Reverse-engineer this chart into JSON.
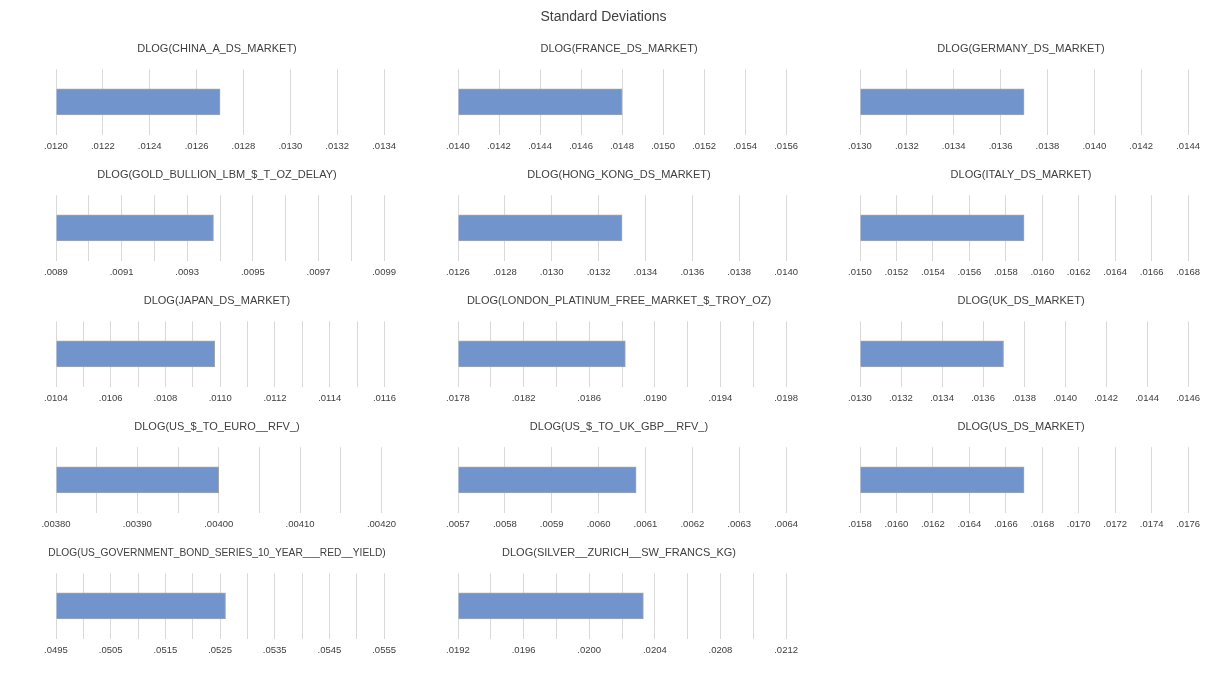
{
  "chart_data": [
    {
      "type": "other",
      "title": "Standard Deviations"
    },
    {
      "type": "bar",
      "orientation": "horizontal",
      "title": "DLOG(CHINA_A_DS_MARKET)",
      "categories": [
        null
      ],
      "values": [
        0.0127
      ],
      "color": "#7294cc",
      "xlim": [
        0.012,
        0.0134
      ],
      "xticks": [
        {
          "value": 0.012,
          "label": ".0120"
        },
        {
          "value": 0.0122,
          "label": ".0122"
        },
        {
          "value": 0.0124,
          "label": ".0124"
        },
        {
          "value": 0.0126,
          "label": ".0126"
        },
        {
          "value": 0.0128,
          "label": ".0128"
        },
        {
          "value": 0.013,
          "label": ".0130"
        },
        {
          "value": 0.0132,
          "label": ".0132"
        },
        {
          "value": 0.0134,
          "label": ".0134"
        }
      ],
      "grid": "x",
      "tick_labels": "x"
    },
    {
      "type": "bar",
      "orientation": "horizontal",
      "title": "DLOG(FRANCE_DS_MARKET)",
      "categories": [
        null
      ],
      "values": [
        0.0148
      ],
      "color": "#7294cc",
      "xlim": [
        0.014,
        0.0156
      ],
      "xticks": [
        {
          "value": 0.014,
          "label": ".0140"
        },
        {
          "value": 0.0142,
          "label": ".0142"
        },
        {
          "value": 0.0144,
          "label": ".0144"
        },
        {
          "value": 0.0146,
          "label": ".0146"
        },
        {
          "value": 0.0148,
          "label": ".0148"
        },
        {
          "value": 0.015,
          "label": ".0150"
        },
        {
          "value": 0.0152,
          "label": ".0152"
        },
        {
          "value": 0.0154,
          "label": ".0154"
        },
        {
          "value": 0.0156,
          "label": ".0156"
        }
      ],
      "grid": "x",
      "tick_labels": "x"
    },
    {
      "type": "bar",
      "orientation": "horizontal",
      "title": "DLOG(GERMANY_DS_MARKET)",
      "categories": [
        null
      ],
      "values": [
        0.0137
      ],
      "color": "#7294cc",
      "xlim": [
        0.013,
        0.0144
      ],
      "xticks": [
        {
          "value": 0.013,
          "label": ".0130"
        },
        {
          "value": 0.0132,
          "label": ".0132"
        },
        {
          "value": 0.0134,
          "label": ".0134"
        },
        {
          "value": 0.0136,
          "label": ".0136"
        },
        {
          "value": 0.0138,
          "label": ".0138"
        },
        {
          "value": 0.014,
          "label": ".0140"
        },
        {
          "value": 0.0142,
          "label": ".0142"
        },
        {
          "value": 0.0144,
          "label": ".0144"
        }
      ],
      "grid": "x",
      "tick_labels": "x"
    },
    {
      "type": "bar",
      "orientation": "horizontal",
      "title": "DLOG(GOLD_BULLION_LBM_$_T_OZ_DELAY)",
      "categories": [
        null
      ],
      "values": [
        0.00938
      ],
      "color": "#7294cc",
      "xlim": [
        0.0089,
        0.0099
      ],
      "xticks": [
        {
          "value": 0.0089,
          "label": ".0089"
        },
        {
          "value": 0.009,
          "label": null
        },
        {
          "value": 0.0091,
          "label": ".0091"
        },
        {
          "value": 0.0092,
          "label": null
        },
        {
          "value": 0.0093,
          "label": ".0093"
        },
        {
          "value": 0.0094,
          "label": null
        },
        {
          "value": 0.0095,
          "label": ".0095"
        },
        {
          "value": 0.0096,
          "label": null
        },
        {
          "value": 0.0097,
          "label": ".0097"
        },
        {
          "value": 0.0098,
          "label": null
        },
        {
          "value": 0.0099,
          "label": ".0099"
        }
      ],
      "grid": "x",
      "tick_labels": "x"
    },
    {
      "type": "bar",
      "orientation": "horizontal",
      "title": "DLOG(HONG_KONG_DS_MARKET)",
      "categories": [
        null
      ],
      "values": [
        0.0133
      ],
      "color": "#7294cc",
      "xlim": [
        0.0126,
        0.014
      ],
      "xticks": [
        {
          "value": 0.0126,
          "label": ".0126"
        },
        {
          "value": 0.0128,
          "label": ".0128"
        },
        {
          "value": 0.013,
          "label": ".0130"
        },
        {
          "value": 0.0132,
          "label": ".0132"
        },
        {
          "value": 0.0134,
          "label": ".0134"
        },
        {
          "value": 0.0136,
          "label": ".0136"
        },
        {
          "value": 0.0138,
          "label": ".0138"
        },
        {
          "value": 0.014,
          "label": ".0140"
        }
      ],
      "grid": "x",
      "tick_labels": "x"
    },
    {
      "type": "bar",
      "orientation": "horizontal",
      "title": "DLOG(ITALY_DS_MARKET)",
      "categories": [
        null
      ],
      "values": [
        0.0159
      ],
      "color": "#7294cc",
      "xlim": [
        0.015,
        0.0168
      ],
      "xticks": [
        {
          "value": 0.015,
          "label": ".0150"
        },
        {
          "value": 0.0152,
          "label": ".0152"
        },
        {
          "value": 0.0154,
          "label": ".0154"
        },
        {
          "value": 0.0156,
          "label": ".0156"
        },
        {
          "value": 0.0158,
          "label": ".0158"
        },
        {
          "value": 0.016,
          "label": ".0160"
        },
        {
          "value": 0.0162,
          "label": ".0162"
        },
        {
          "value": 0.0164,
          "label": ".0164"
        },
        {
          "value": 0.0166,
          "label": ".0166"
        },
        {
          "value": 0.0168,
          "label": ".0168"
        }
      ],
      "grid": "x",
      "tick_labels": "x"
    },
    {
      "type": "bar",
      "orientation": "horizontal",
      "title": "DLOG(JAPAN_DS_MARKET)",
      "categories": [
        null
      ],
      "values": [
        0.01098
      ],
      "color": "#7294cc",
      "xlim": [
        0.0104,
        0.0116
      ],
      "xticks": [
        {
          "value": 0.0104,
          "label": ".0104"
        },
        {
          "value": 0.0105,
          "label": null
        },
        {
          "value": 0.0106,
          "label": ".0106"
        },
        {
          "value": 0.0107,
          "label": null
        },
        {
          "value": 0.0108,
          "label": ".0108"
        },
        {
          "value": 0.0109,
          "label": null
        },
        {
          "value": 0.011,
          "label": ".0110"
        },
        {
          "value": 0.0111,
          "label": null
        },
        {
          "value": 0.0112,
          "label": ".0112"
        },
        {
          "value": 0.0113,
          "label": null
        },
        {
          "value": 0.0114,
          "label": ".0114"
        },
        {
          "value": 0.0115,
          "label": null
        },
        {
          "value": 0.0116,
          "label": ".0116"
        }
      ],
      "grid": "x",
      "tick_labels": "x"
    },
    {
      "type": "bar",
      "orientation": "horizontal",
      "title": "DLOG(LONDON_PLATINUM_FREE_MARKET_$_TROY_OZ)",
      "categories": [
        null
      ],
      "values": [
        0.01882
      ],
      "color": "#7294cc",
      "xlim": [
        0.0178,
        0.0198
      ],
      "xticks": [
        {
          "value": 0.0178,
          "label": ".0178"
        },
        {
          "value": 0.018,
          "label": null
        },
        {
          "value": 0.0182,
          "label": ".0182"
        },
        {
          "value": 0.0184,
          "label": null
        },
        {
          "value": 0.0186,
          "label": ".0186"
        },
        {
          "value": 0.0188,
          "label": null
        },
        {
          "value": 0.019,
          "label": ".0190"
        },
        {
          "value": 0.0192,
          "label": null
        },
        {
          "value": 0.0194,
          "label": ".0194"
        },
        {
          "value": 0.0196,
          "label": null
        },
        {
          "value": 0.0198,
          "label": ".0198"
        }
      ],
      "grid": "x",
      "tick_labels": "x"
    },
    {
      "type": "bar",
      "orientation": "horizontal",
      "title": "DLOG(UK_DS_MARKET)",
      "categories": [
        null
      ],
      "values": [
        0.0137
      ],
      "color": "#7294cc",
      "xlim": [
        0.013,
        0.0146
      ],
      "xticks": [
        {
          "value": 0.013,
          "label": ".0130"
        },
        {
          "value": 0.0132,
          "label": ".0132"
        },
        {
          "value": 0.0134,
          "label": ".0134"
        },
        {
          "value": 0.0136,
          "label": ".0136"
        },
        {
          "value": 0.0138,
          "label": ".0138"
        },
        {
          "value": 0.014,
          "label": ".0140"
        },
        {
          "value": 0.0142,
          "label": ".0142"
        },
        {
          "value": 0.0144,
          "label": ".0144"
        },
        {
          "value": 0.0146,
          "label": ".0146"
        }
      ],
      "grid": "x",
      "tick_labels": "x"
    },
    {
      "type": "bar",
      "orientation": "horizontal",
      "title": "DLOG(US_$_TO_EURO__RFV_)",
      "categories": [
        null
      ],
      "values": [
        0.004
      ],
      "color": "#7294cc",
      "xlim": [
        0.0038,
        0.0042
      ],
      "xticks": [
        {
          "value": 0.0038,
          "label": ".00380"
        },
        {
          "value": 0.00385,
          "label": null
        },
        {
          "value": 0.0039,
          "label": ".00390"
        },
        {
          "value": 0.00395,
          "label": null
        },
        {
          "value": 0.004,
          "label": ".00400"
        },
        {
          "value": 0.00405,
          "label": null
        },
        {
          "value": 0.0041,
          "label": ".00410"
        },
        {
          "value": 0.00415,
          "label": null
        },
        {
          "value": 0.0042,
          "label": ".00420"
        }
      ],
      "grid": "x",
      "tick_labels": "x"
    },
    {
      "type": "bar",
      "orientation": "horizontal",
      "title": "DLOG(US_$_TO_UK_GBP__RFV_)",
      "categories": [
        null
      ],
      "values": [
        0.00608
      ],
      "color": "#7294cc",
      "xlim": [
        0.0057,
        0.0064
      ],
      "xticks": [
        {
          "value": 0.0057,
          "label": ".0057"
        },
        {
          "value": 0.0058,
          "label": ".0058"
        },
        {
          "value": 0.0059,
          "label": ".0059"
        },
        {
          "value": 0.006,
          "label": ".0060"
        },
        {
          "value": 0.0061,
          "label": ".0061"
        },
        {
          "value": 0.0062,
          "label": ".0062"
        },
        {
          "value": 0.0063,
          "label": ".0063"
        },
        {
          "value": 0.0064,
          "label": ".0064"
        }
      ],
      "grid": "x",
      "tick_labels": "x"
    },
    {
      "type": "bar",
      "orientation": "horizontal",
      "title": "DLOG(US_DS_MARKET)",
      "categories": [
        null
      ],
      "values": [
        0.0167
      ],
      "color": "#7294cc",
      "xlim": [
        0.0158,
        0.0176
      ],
      "xticks": [
        {
          "value": 0.0158,
          "label": ".0158"
        },
        {
          "value": 0.016,
          "label": ".0160"
        },
        {
          "value": 0.0162,
          "label": ".0162"
        },
        {
          "value": 0.0164,
          "label": ".0164"
        },
        {
          "value": 0.0166,
          "label": ".0166"
        },
        {
          "value": 0.0168,
          "label": ".0168"
        },
        {
          "value": 0.017,
          "label": ".0170"
        },
        {
          "value": 0.0172,
          "label": ".0172"
        },
        {
          "value": 0.0174,
          "label": ".0174"
        },
        {
          "value": 0.0176,
          "label": ".0176"
        }
      ],
      "grid": "x",
      "tick_labels": "x"
    },
    {
      "type": "bar",
      "orientation": "horizontal",
      "title": "DLOG(US_GOVERNMENT_BOND_SERIES_10_YEAR___RED__YIELD)",
      "categories": [
        null
      ],
      "values": [
        0.0526
      ],
      "color": "#7294cc",
      "xlim": [
        0.0495,
        0.0555
      ],
      "xticks": [
        {
          "value": 0.0495,
          "label": ".0495"
        },
        {
          "value": 0.05,
          "label": null
        },
        {
          "value": 0.0505,
          "label": ".0505"
        },
        {
          "value": 0.051,
          "label": null
        },
        {
          "value": 0.0515,
          "label": ".0515"
        },
        {
          "value": 0.052,
          "label": null
        },
        {
          "value": 0.0525,
          "label": ".0525"
        },
        {
          "value": 0.053,
          "label": null
        },
        {
          "value": 0.0535,
          "label": ".0535"
        },
        {
          "value": 0.054,
          "label": null
        },
        {
          "value": 0.0545,
          "label": ".0545"
        },
        {
          "value": 0.055,
          "label": null
        },
        {
          "value": 0.0555,
          "label": ".0555"
        }
      ],
      "grid": "x",
      "tick_labels": "x"
    },
    {
      "type": "bar",
      "orientation": "horizontal",
      "title": "DLOG(SILVER__ZURICH__SW_FRANCS_KG)",
      "categories": [
        null
      ],
      "values": [
        0.02033
      ],
      "color": "#7294cc",
      "xlim": [
        0.0192,
        0.0212
      ],
      "xticks": [
        {
          "value": 0.0192,
          "label": ".0192"
        },
        {
          "value": 0.0194,
          "label": null
        },
        {
          "value": 0.0196,
          "label": ".0196"
        },
        {
          "value": 0.0198,
          "label": null
        },
        {
          "value": 0.02,
          "label": ".0200"
        },
        {
          "value": 0.0202,
          "label": null
        },
        {
          "value": 0.0204,
          "label": ".0204"
        },
        {
          "value": 0.0206,
          "label": null
        },
        {
          "value": 0.0208,
          "label": ".0208"
        },
        {
          "value": 0.021,
          "label": null
        },
        {
          "value": 0.0212,
          "label": ".0212"
        }
      ],
      "grid": "x",
      "tick_labels": "x"
    }
  ]
}
